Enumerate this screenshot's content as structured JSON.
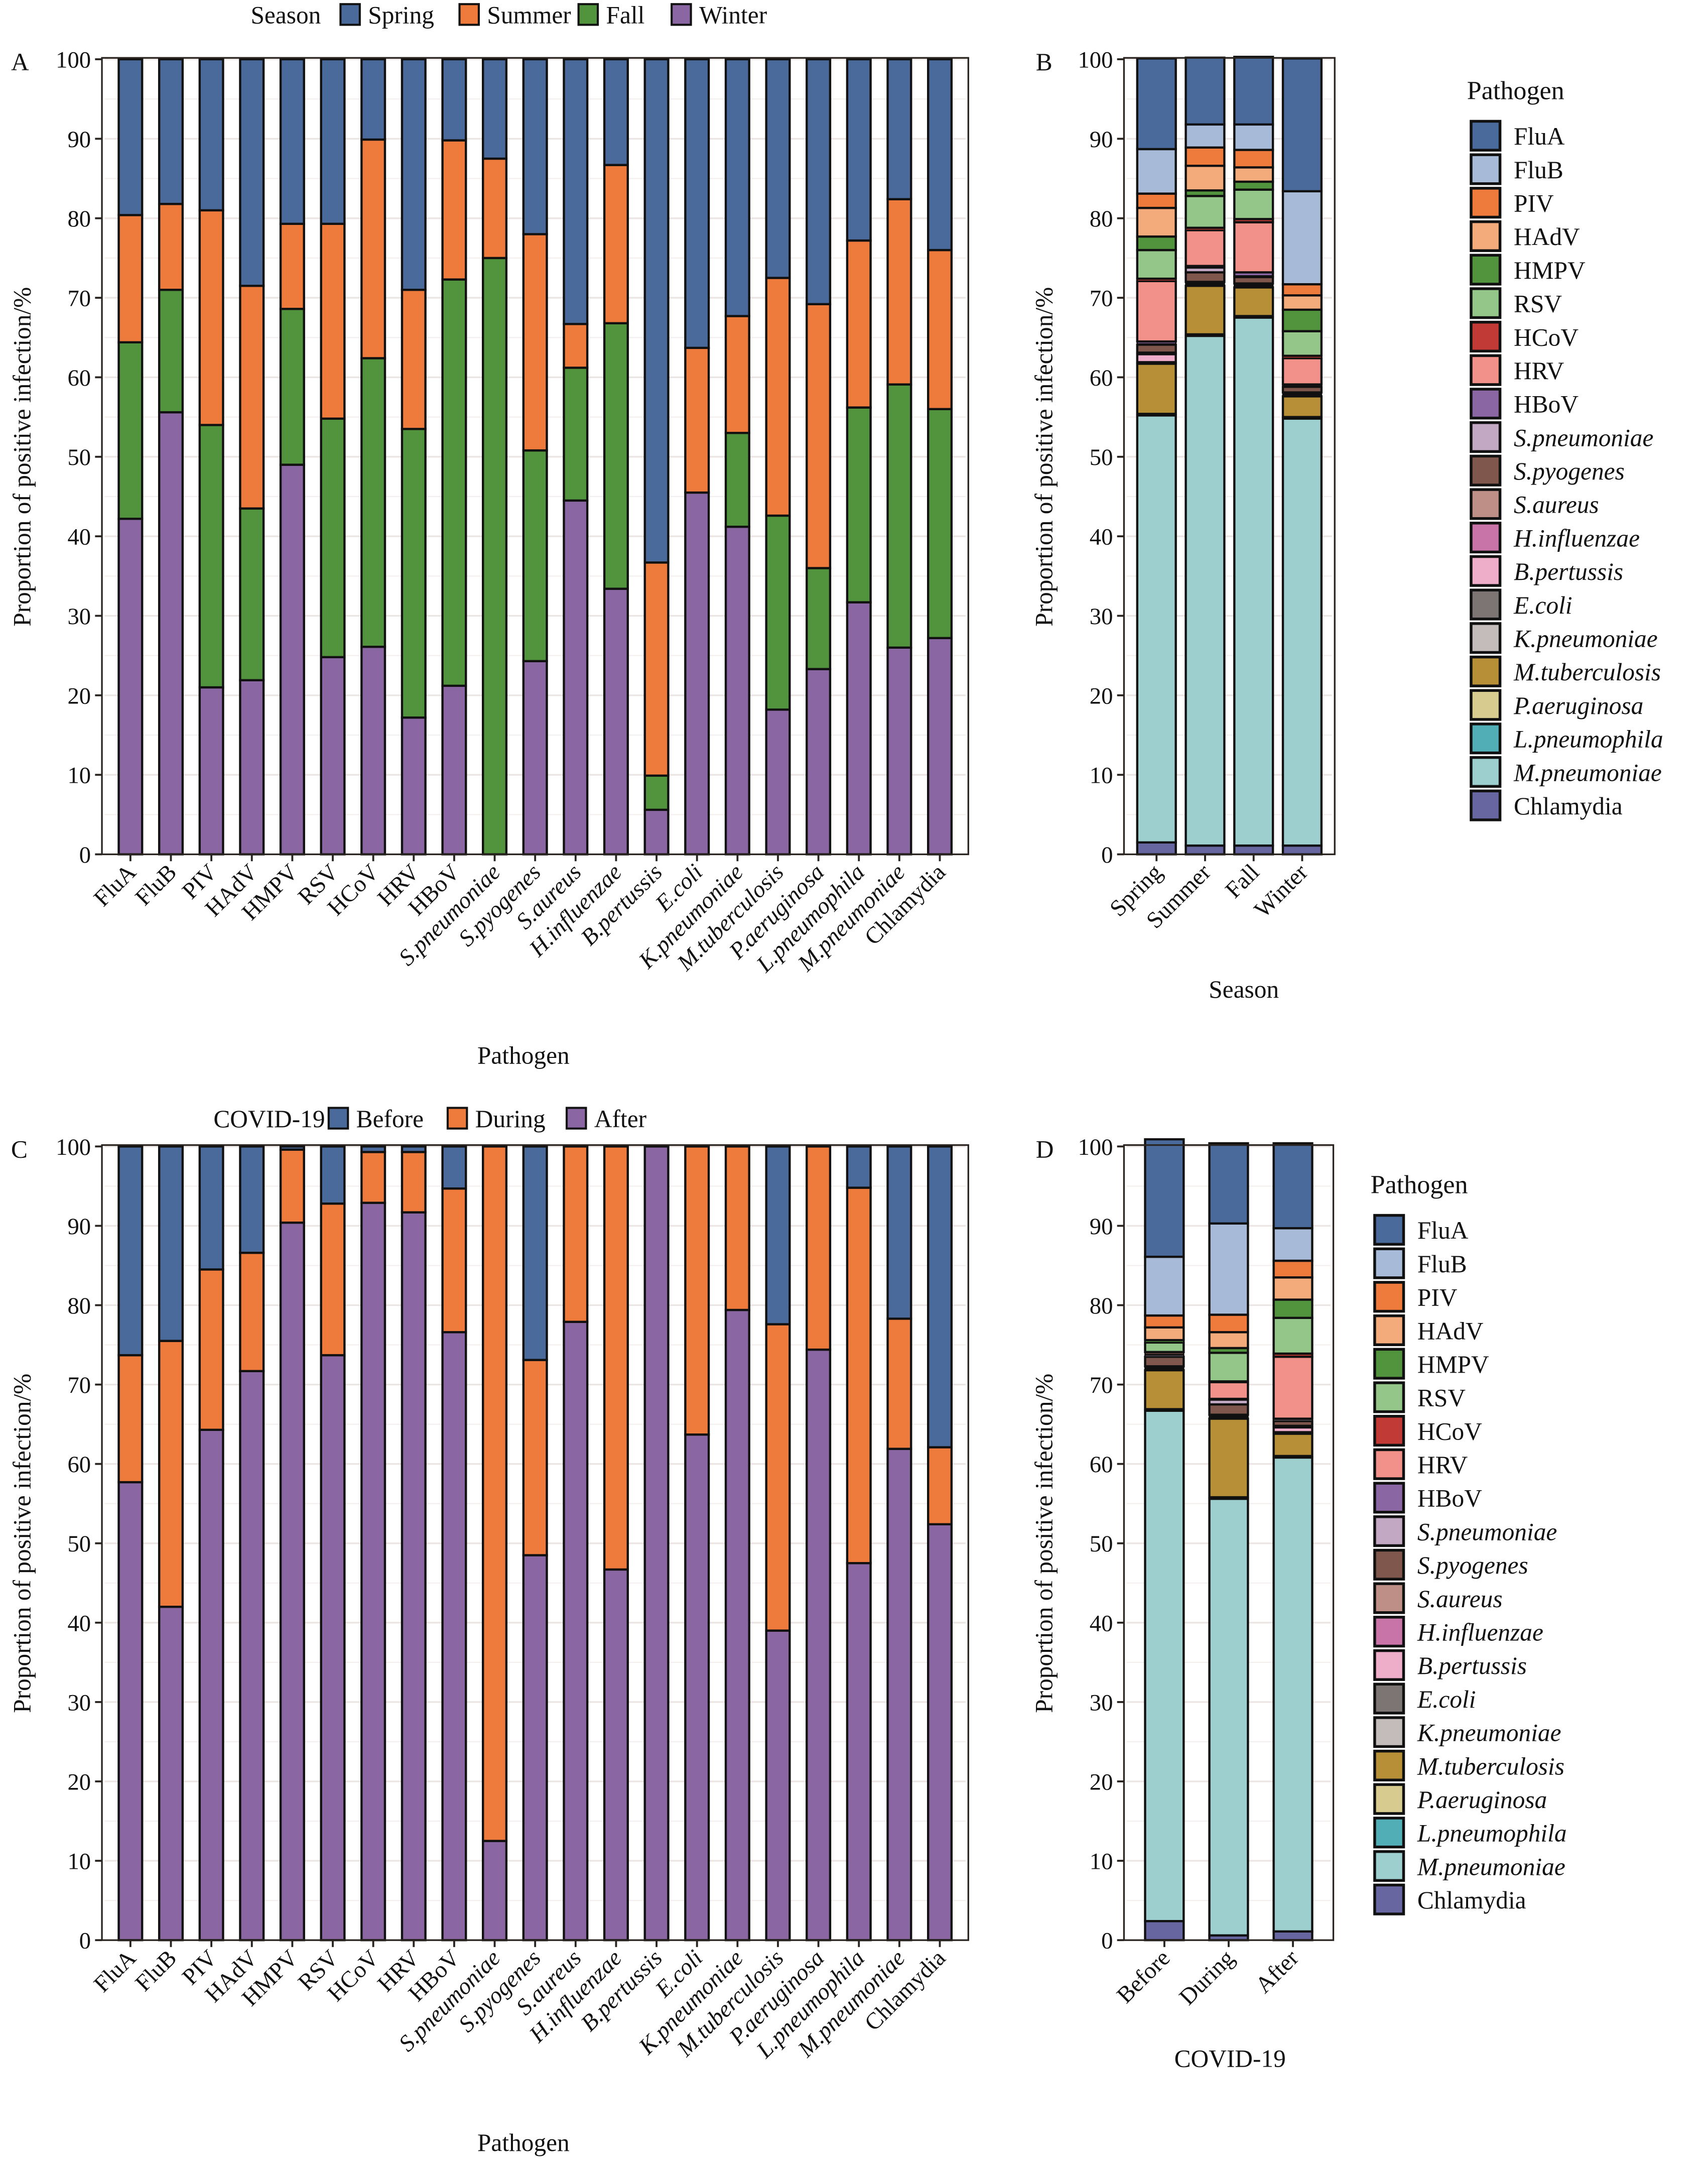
{
  "figure": {
    "pathogens": [
      "FluA",
      "FluB",
      "PIV",
      "HAdV",
      "HMPV",
      "RSV",
      "HCoV",
      "HRV",
      "HBoV",
      "S.pneumoniae",
      "S.pyogenes",
      "S.aureus",
      "H.influenzae",
      "B.pertussis",
      "E.coli",
      "K.pneumoniae",
      "M.tuberculosis",
      "P.aeruginosa",
      "L.pneumophila",
      "M.pneumoniae",
      "Chlamydia"
    ],
    "italic_pathogens": [
      "S.pneumoniae",
      "S.pyogenes",
      "S.aureus",
      "H.influenzae",
      "B.pertussis",
      "E.coli",
      "K.pneumoniae",
      "M.tuberculosis",
      "P.aeruginosa",
      "L.pneumophila",
      "M.pneumoniae"
    ],
    "pathogen_colors": {
      "FluA": "#4a6a9b",
      "FluB": "#a7bbd9",
      "PIV": "#ee7a3b",
      "HAdV": "#f3ab7b",
      "HMPV": "#52943d",
      "RSV": "#93c688",
      "HCoV": "#c23a36",
      "HRV": "#f2918a",
      "HBoV": "#8a67a3",
      "S.pneumoniae": "#c3a8c4",
      "S.pyogenes": "#80574c",
      "S.aureus": "#bd8f87",
      "H.influenzae": "#c974a8",
      "B.pertussis": "#eeadc9",
      "E.coli": "#7d7574",
      "K.pneumoniae": "#c4bcbb",
      "M.tuberculosis": "#b68f36",
      "P.aeruginosa": "#d7cb90",
      "L.pneumophila": "#52aeb6",
      "M.pneumoniae": "#9ecfcf",
      "Chlamydia": "#6766a0"
    }
  },
  "chart_data": [
    {
      "id": "A",
      "type": "bar",
      "stacked": true,
      "panel_label": "A",
      "title": "",
      "xlabel": "Pathogen",
      "ylabel": "Proportion of positive infection/%",
      "ylim": [
        0,
        100
      ],
      "yticks": [
        0,
        10,
        20,
        30,
        40,
        50,
        60,
        70,
        80,
        90,
        100
      ],
      "grid": true,
      "legend": {
        "title": "Season",
        "placement": "top",
        "entries": [
          "Spring",
          "Summer",
          "Fall",
          "Winter"
        ]
      },
      "categories": [
        "FluA",
        "FluB",
        "PIV",
        "HAdV",
        "HMPV",
        "RSV",
        "HCoV",
        "HRV",
        "HBoV",
        "S.pneumoniae",
        "S.pyogenes",
        "S.aureus",
        "H.influenzae",
        "B.pertussis",
        "E.coli",
        "K.pneumoniae",
        "M.tuberculosis",
        "P.aeruginosa",
        "L.pneumophila",
        "M.pneumoniae",
        "Chlamydia"
      ],
      "stack_order_bottom_to_top": [
        "Winter",
        "Fall",
        "Summer",
        "Spring"
      ],
      "series": [
        {
          "name": "Spring",
          "color": "#4a6a9b",
          "values": [
            19.6,
            18.2,
            19.0,
            28.5,
            20.7,
            20.7,
            10.1,
            29.0,
            10.2,
            12.5,
            22.0,
            33.3,
            13.3,
            63.3,
            36.3,
            32.3,
            27.5,
            30.8,
            22.8,
            17.6,
            24.0
          ]
        },
        {
          "name": "Summer",
          "color": "#ee7a3b",
          "values": [
            16.0,
            10.8,
            27.0,
            28.0,
            10.7,
            24.5,
            27.5,
            17.5,
            17.5,
            12.5,
            27.2,
            5.5,
            19.9,
            26.8,
            18.2,
            14.7,
            29.9,
            33.2,
            21.0,
            23.3,
            20.0
          ]
        },
        {
          "name": "Fall",
          "color": "#52943d",
          "values": [
            22.2,
            15.4,
            33.0,
            21.6,
            19.6,
            30.0,
            36.3,
            36.3,
            51.1,
            75.0,
            26.5,
            16.7,
            33.4,
            4.3,
            0.0,
            11.8,
            24.4,
            12.7,
            24.5,
            33.1,
            28.8
          ]
        },
        {
          "name": "Winter",
          "color": "#8a67a3",
          "values": [
            42.2,
            55.6,
            21.0,
            21.9,
            49.0,
            24.8,
            26.1,
            17.2,
            21.2,
            0.0,
            24.3,
            44.5,
            33.4,
            5.6,
            45.5,
            41.2,
            18.2,
            23.3,
            31.7,
            26.0,
            27.2
          ]
        }
      ]
    },
    {
      "id": "B",
      "type": "bar",
      "stacked": true,
      "panel_label": "B",
      "title": "",
      "xlabel": "Season",
      "ylabel": "Proportion of positive infection/%",
      "ylim": [
        0,
        100
      ],
      "yticks": [
        0,
        10,
        20,
        30,
        40,
        50,
        60,
        70,
        80,
        90,
        100
      ],
      "grid": true,
      "legend": {
        "title": "Pathogen",
        "placement": "right"
      },
      "categories": [
        "Spring",
        "Summer",
        "Fall",
        "Winter"
      ],
      "stack_order_bottom_to_top": [
        "Chlamydia",
        "M.pneumoniae",
        "L.pneumophila",
        "P.aeruginosa",
        "M.tuberculosis",
        "K.pneumoniae",
        "E.coli",
        "B.pertussis",
        "H.influenzae",
        "S.aureus",
        "S.pyogenes",
        "S.pneumoniae",
        "HBoV",
        "HRV",
        "HCoV",
        "RSV",
        "HMPV",
        "HAdV",
        "PIV",
        "FluB",
        "FluA"
      ],
      "series": [
        {
          "name": "FluA",
          "values": [
            11.4,
            8.4,
            8.5,
            16.7
          ]
        },
        {
          "name": "FluB",
          "values": [
            5.6,
            2.9,
            3.2,
            11.7
          ]
        },
        {
          "name": "PIV",
          "values": [
            1.8,
            2.3,
            2.2,
            1.4
          ]
        },
        {
          "name": "HAdV",
          "values": [
            3.6,
            3.1,
            1.8,
            1.8
          ]
        },
        {
          "name": "HMPV",
          "values": [
            1.7,
            0.7,
            1.0,
            2.7
          ]
        },
        {
          "name": "RSV",
          "values": [
            3.6,
            4.0,
            3.7,
            3.1
          ]
        },
        {
          "name": "HCoV",
          "values": [
            0.3,
            0.3,
            0.4,
            0.3
          ]
        },
        {
          "name": "HRV",
          "values": [
            7.6,
            4.5,
            6.3,
            3.3
          ]
        },
        {
          "name": "HBoV",
          "values": [
            0.3,
            0.2,
            0.5,
            0.2
          ]
        },
        {
          "name": "S.pneumoniae",
          "values": [
            0.1,
            0.6,
            0.1,
            0.1
          ]
        },
        {
          "name": "S.pyogenes",
          "values": [
            1.0,
            1.2,
            0.8,
            0.7
          ]
        },
        {
          "name": "S.aureus",
          "values": [
            0.1,
            0.1,
            0.1,
            0.1
          ]
        },
        {
          "name": "H.influenzae",
          "values": [
            0.1,
            0.1,
            0.1,
            0.1
          ]
        },
        {
          "name": "B.pertussis",
          "values": [
            1.0,
            0.1,
            0.1,
            0.1
          ]
        },
        {
          "name": "E.coli",
          "values": [
            0.1,
            0.1,
            0.1,
            0.1
          ]
        },
        {
          "name": "K.pneumoniae",
          "values": [
            0.1,
            0.1,
            0.1,
            0.1
          ]
        },
        {
          "name": "M.tuberculosis",
          "values": [
            6.3,
            6.1,
            3.6,
            2.6
          ]
        },
        {
          "name": "P.aeruginosa",
          "values": [
            0.1,
            0.1,
            0.1,
            0.1
          ]
        },
        {
          "name": "L.pneumophila",
          "values": [
            0.1,
            0.1,
            0.1,
            0.1
          ]
        },
        {
          "name": "M.pneumoniae",
          "values": [
            53.7,
            64.1,
            66.4,
            53.7
          ]
        },
        {
          "name": "Chlamydia",
          "values": [
            1.5,
            1.1,
            1.1,
            1.1
          ]
        }
      ]
    },
    {
      "id": "C",
      "type": "bar",
      "stacked": true,
      "panel_label": "C",
      "title": "",
      "xlabel": "Pathogen",
      "ylabel": "Proportion of positive infection/%",
      "ylim": [
        0,
        100
      ],
      "yticks": [
        0,
        10,
        20,
        30,
        40,
        50,
        60,
        70,
        80,
        90,
        100
      ],
      "grid": true,
      "legend": {
        "title": "COVID-19",
        "placement": "top",
        "entries": [
          "Before",
          "During",
          "After"
        ]
      },
      "categories": [
        "FluA",
        "FluB",
        "PIV",
        "HAdV",
        "HMPV",
        "RSV",
        "HCoV",
        "HRV",
        "HBoV",
        "S.pneumoniae",
        "S.pyogenes",
        "S.aureus",
        "H.influenzae",
        "B.pertussis",
        "E.coli",
        "K.pneumoniae",
        "M.tuberculosis",
        "P.aeruginosa",
        "L.pneumophila",
        "M.pneumoniae",
        "Chlamydia"
      ],
      "stack_order_bottom_to_top": [
        "After",
        "During",
        "Before"
      ],
      "series": [
        {
          "name": "Before",
          "color": "#4a6a9b",
          "values": [
            26.3,
            24.5,
            15.5,
            13.4,
            0.4,
            7.2,
            0.7,
            0.7,
            5.3,
            0.0,
            26.9,
            0.0,
            0.0,
            0.0,
            0.0,
            0.0,
            22.4,
            0.0,
            5.2,
            21.7,
            37.9
          ]
        },
        {
          "name": "During",
          "color": "#ee7a3b",
          "values": [
            16.0,
            33.5,
            20.2,
            14.9,
            9.2,
            19.1,
            6.4,
            7.6,
            18.1,
            87.5,
            24.6,
            22.1,
            53.3,
            0.0,
            36.3,
            20.6,
            38.6,
            25.6,
            47.3,
            16.4,
            9.7
          ]
        },
        {
          "name": "After",
          "color": "#8a67a3",
          "values": [
            57.7,
            42.0,
            64.3,
            71.7,
            90.4,
            73.7,
            92.9,
            91.7,
            76.6,
            12.5,
            48.5,
            77.9,
            46.7,
            100.0,
            63.7,
            79.4,
            39.0,
            74.4,
            47.5,
            61.9,
            52.4
          ]
        }
      ]
    },
    {
      "id": "D",
      "type": "bar",
      "stacked": true,
      "panel_label": "D",
      "title": "",
      "xlabel": "COVID-19",
      "ylabel": "Proportion of positive infection/%",
      "ylim": [
        0,
        100
      ],
      "yticks": [
        0,
        10,
        20,
        30,
        40,
        50,
        60,
        70,
        80,
        90,
        100
      ],
      "grid": true,
      "legend": {
        "title": "Pathogen",
        "placement": "right"
      },
      "categories": [
        "Before",
        "During",
        "After"
      ],
      "stack_order_bottom_to_top": [
        "Chlamydia",
        "M.pneumoniae",
        "L.pneumophila",
        "P.aeruginosa",
        "M.tuberculosis",
        "K.pneumoniae",
        "E.coli",
        "B.pertussis",
        "H.influenzae",
        "S.aureus",
        "S.pyogenes",
        "S.pneumoniae",
        "HBoV",
        "HRV",
        "HCoV",
        "RSV",
        "HMPV",
        "HAdV",
        "PIV",
        "FluB",
        "FluA"
      ],
      "series": [
        {
          "name": "FluA",
          "values": [
            14.8,
            10.1,
            10.7
          ]
        },
        {
          "name": "FluB",
          "values": [
            7.4,
            11.5,
            4.1
          ]
        },
        {
          "name": "PIV",
          "values": [
            1.5,
            2.2,
            2.1
          ]
        },
        {
          "name": "HAdV",
          "values": [
            1.6,
            2.0,
            2.8
          ]
        },
        {
          "name": "HMPV",
          "values": [
            0.3,
            0.6,
            2.3
          ]
        },
        {
          "name": "RSV",
          "values": [
            1.2,
            3.6,
            4.5
          ]
        },
        {
          "name": "HCoV",
          "values": [
            0.1,
            0.1,
            0.4
          ]
        },
        {
          "name": "HRV",
          "values": [
            0.2,
            2.1,
            7.8
          ]
        },
        {
          "name": "HBoV",
          "values": [
            0.1,
            0.1,
            0.1
          ]
        },
        {
          "name": "S.pneumoniae",
          "values": [
            0.2,
            0.6,
            0.2
          ]
        },
        {
          "name": "S.pyogenes",
          "values": [
            1.2,
            1.3,
            0.6
          ]
        },
        {
          "name": "S.aureus",
          "values": [
            0.1,
            0.1,
            0.1
          ]
        },
        {
          "name": "H.influenzae",
          "values": [
            0.1,
            0.1,
            0.1
          ]
        },
        {
          "name": "B.pertussis",
          "values": [
            0.1,
            0.1,
            0.6
          ]
        },
        {
          "name": "E.coli",
          "values": [
            0.1,
            0.1,
            0.1
          ]
        },
        {
          "name": "K.pneumoniae",
          "values": [
            0.1,
            0.1,
            0.1
          ]
        },
        {
          "name": "M.tuberculosis",
          "values": [
            4.9,
            9.9,
            2.8
          ]
        },
        {
          "name": "P.aeruginosa",
          "values": [
            0.1,
            0.1,
            0.1
          ]
        },
        {
          "name": "L.pneumophila",
          "values": [
            0.1,
            0.1,
            0.1
          ]
        },
        {
          "name": "M.pneumoniae",
          "values": [
            64.3,
            55.0,
            59.7
          ]
        },
        {
          "name": "Chlamydia",
          "values": [
            2.4,
            0.6,
            1.1
          ]
        }
      ]
    }
  ]
}
